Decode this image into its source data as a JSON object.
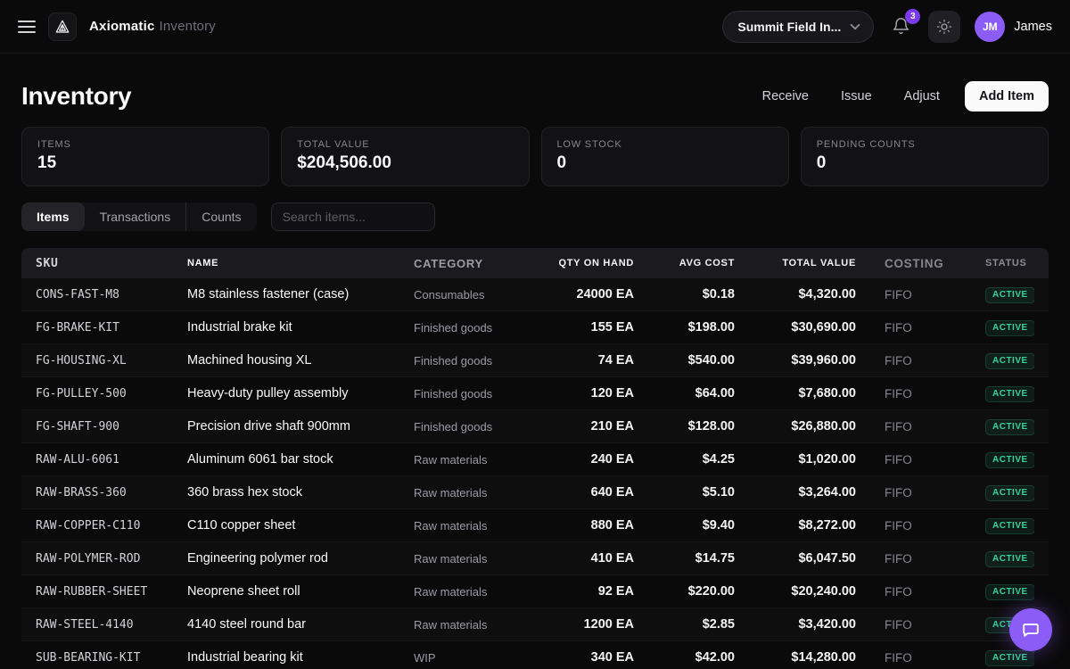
{
  "header": {
    "brand": "Axiomatic",
    "brand_suffix": "Inventory",
    "org_selector_value": "Summit Field In...",
    "notification_count": "3",
    "avatar_initials": "JM",
    "user_name": "James"
  },
  "page": {
    "title": "Inventory",
    "actions": {
      "receive": "Receive",
      "issue": "Issue",
      "adjust": "Adjust",
      "add_item": "Add Item"
    }
  },
  "stats": [
    {
      "label": "ITEMS",
      "value": "15"
    },
    {
      "label": "TOTAL VALUE",
      "value": "$204,506.00"
    },
    {
      "label": "LOW STOCK",
      "value": "0"
    },
    {
      "label": "PENDING COUNTS",
      "value": "0"
    }
  ],
  "tabs": [
    {
      "label": "Items",
      "active": true
    },
    {
      "label": "Transactions",
      "active": false
    },
    {
      "label": "Counts",
      "active": false
    }
  ],
  "search": {
    "placeholder": "Search items..."
  },
  "table": {
    "columns": [
      "SKU",
      "NAME",
      "CATEGORY",
      "QTY ON HAND",
      "AVG COST",
      "TOTAL VALUE",
      "COSTING",
      "STATUS"
    ],
    "rows": [
      [
        "CONS-FAST-M8",
        "M8 stainless fastener (case)",
        "Consumables",
        "24000 EA",
        "$0.18",
        "$4,320.00",
        "FIFO",
        "ACTIVE"
      ],
      [
        "FG-BRAKE-KIT",
        "Industrial brake kit",
        "Finished goods",
        "155 EA",
        "$198.00",
        "$30,690.00",
        "FIFO",
        "ACTIVE"
      ],
      [
        "FG-HOUSING-XL",
        "Machined housing XL",
        "Finished goods",
        "74 EA",
        "$540.00",
        "$39,960.00",
        "FIFO",
        "ACTIVE"
      ],
      [
        "FG-PULLEY-500",
        "Heavy-duty pulley assembly",
        "Finished goods",
        "120 EA",
        "$64.00",
        "$7,680.00",
        "FIFO",
        "ACTIVE"
      ],
      [
        "FG-SHAFT-900",
        "Precision drive shaft 900mm",
        "Finished goods",
        "210 EA",
        "$128.00",
        "$26,880.00",
        "FIFO",
        "ACTIVE"
      ],
      [
        "RAW-ALU-6061",
        "Aluminum 6061 bar stock",
        "Raw materials",
        "240 EA",
        "$4.25",
        "$1,020.00",
        "FIFO",
        "ACTIVE"
      ],
      [
        "RAW-BRASS-360",
        "360 brass hex stock",
        "Raw materials",
        "640 EA",
        "$5.10",
        "$3,264.00",
        "FIFO",
        "ACTIVE"
      ],
      [
        "RAW-COPPER-C110",
        "C110 copper sheet",
        "Raw materials",
        "880 EA",
        "$9.40",
        "$8,272.00",
        "FIFO",
        "ACTIVE"
      ],
      [
        "RAW-POLYMER-ROD",
        "Engineering polymer rod",
        "Raw materials",
        "410 EA",
        "$14.75",
        "$6,047.50",
        "FIFO",
        "ACTIVE"
      ],
      [
        "RAW-RUBBER-SHEET",
        "Neoprene sheet roll",
        "Raw materials",
        "92 EA",
        "$220.00",
        "$20,240.00",
        "FIFO",
        "ACTIVE"
      ],
      [
        "RAW-STEEL-4140",
        "4140 steel round bar",
        "Raw materials",
        "1200 EA",
        "$2.85",
        "$3,420.00",
        "FIFO",
        "ACTIVE"
      ],
      [
        "SUB-BEARING-KIT",
        "Industrial bearing kit",
        "WIP",
        "340 EA",
        "$42.00",
        "$14,280.00",
        "FIFO",
        "ACTIVE"
      ]
    ]
  },
  "colors": {
    "accent_purple": "#8b5cf6",
    "badge_purple": "#7c3aed",
    "status_active_green": "#34d399",
    "background": "#0a0a0b",
    "card_background": "#121215",
    "primary_button_bg": "#fafafa"
  }
}
